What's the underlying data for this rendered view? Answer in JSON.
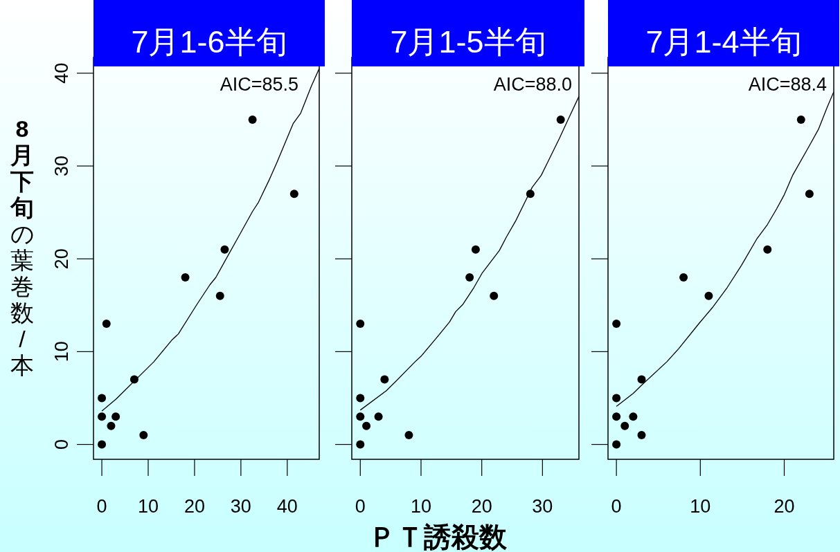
{
  "chart_data": [
    {
      "type": "scatter",
      "title": "7月1-6半旬",
      "ylabel": "8月下旬の葉巻数/本",
      "annotations": [
        "AIC=85.5"
      ],
      "xlim": [
        -1.8,
        46.9
      ],
      "ylim": [
        -1.6,
        41.7
      ],
      "xticks": [
        0,
        10,
        20,
        30,
        40
      ],
      "yticks": [
        0,
        10,
        20,
        30,
        40
      ],
      "grid": false,
      "marker": "circle",
      "series": [
        {
          "color": "#000000",
          "x": [
            0,
            0,
            0,
            1,
            2,
            3,
            7,
            9,
            18,
            25.5,
            26.5,
            32.5,
            41.5
          ],
          "values": [
            0,
            3,
            5,
            13,
            2,
            3,
            7,
            1,
            18,
            16,
            21,
            35,
            27
          ]
        },
        {
          "type": "line",
          "marker": "none",
          "color": "#000000",
          "x": [
            0,
            3.1,
            11.2,
            15.2,
            16.5,
            20.4,
            23.3,
            24.6,
            26.6,
            29.5,
            32.5,
            33.8,
            36.1,
            37.7,
            41.3,
            42.9,
            45.2,
            46.9
          ],
          "values": [
            3.6,
            4.9,
            8.9,
            11.3,
            11.9,
            15.0,
            17.2,
            18.0,
            19.8,
            22.4,
            25.1,
            26.1,
            28.5,
            30.3,
            34.6,
            35.7,
            38.6,
            40.5
          ]
        }
      ]
    },
    {
      "type": "scatter",
      "title": "7月1-5半旬",
      "xlabel": "ＰＴ誘殺数",
      "annotations": [
        "AIC=88.0"
      ],
      "xlim": [
        -1.4,
        36.0
      ],
      "ylim": [
        -1.6,
        41.7
      ],
      "xticks": [
        0,
        10,
        20,
        30
      ],
      "yticks": [
        0,
        10,
        20,
        30,
        40
      ],
      "tick_labels": "x",
      "grid": false,
      "marker": "circle",
      "series": [
        {
          "color": "#000000",
          "x": [
            0,
            0,
            0,
            0,
            1,
            3,
            4,
            8,
            18,
            19,
            22,
            28,
            33
          ],
          "values": [
            0,
            3,
            5,
            13,
            2,
            3,
            7,
            1,
            18,
            21,
            16,
            27,
            35
          ]
        },
        {
          "type": "line",
          "marker": "none",
          "color": "#000000",
          "x": [
            0,
            4.3,
            6,
            7.8,
            9,
            10,
            12.7,
            14.7,
            15.7,
            16.9,
            18.7,
            20.1,
            22.9,
            24.1,
            25.6,
            27.1,
            28.3,
            29.8,
            31.0,
            32.8,
            34.5,
            36.0
          ],
          "values": [
            3.7,
            5.8,
            6.9,
            8.1,
            8.9,
            9.5,
            11.6,
            13.2,
            14.3,
            15.1,
            16.9,
            18.5,
            20.9,
            22.4,
            24.1,
            26.1,
            27.7,
            29.0,
            30.6,
            33.0,
            35.4,
            37.5
          ]
        }
      ]
    },
    {
      "type": "scatter",
      "title": "7月1-4半旬",
      "annotations": [
        "AIC=88.4"
      ],
      "xlim": [
        -1.0,
        25.9
      ],
      "ylim": [
        -1.6,
        41.7
      ],
      "xticks": [
        0,
        10,
        20
      ],
      "yticks": [
        0,
        10,
        20,
        30,
        40
      ],
      "tick_labels": "x",
      "grid": false,
      "marker": "circle",
      "series": [
        {
          "color": "#000000",
          "x": [
            0,
            0,
            0,
            0,
            1,
            2,
            3,
            3,
            8,
            11,
            18,
            22,
            23
          ],
          "values": [
            0,
            3,
            5,
            13,
            2,
            3,
            1,
            7,
            18,
            16,
            21,
            35,
            27
          ]
        },
        {
          "type": "line",
          "marker": "none",
          "color": "#000000",
          "x": [
            0,
            2.0,
            2.9,
            6,
            7.4,
            9.9,
            11.4,
            13.2,
            14.9,
            16.7,
            18,
            19.1,
            20,
            21.0,
            23.0,
            24.1,
            25.1,
            25.9
          ],
          "values": [
            4.1,
            5.5,
            6.3,
            8.9,
            10.3,
            13.1,
            14.7,
            16.9,
            19.3,
            22.1,
            23.7,
            25.4,
            26.9,
            29.0,
            32.2,
            34.0,
            36.3,
            38.0
          ]
        }
      ]
    }
  ]
}
